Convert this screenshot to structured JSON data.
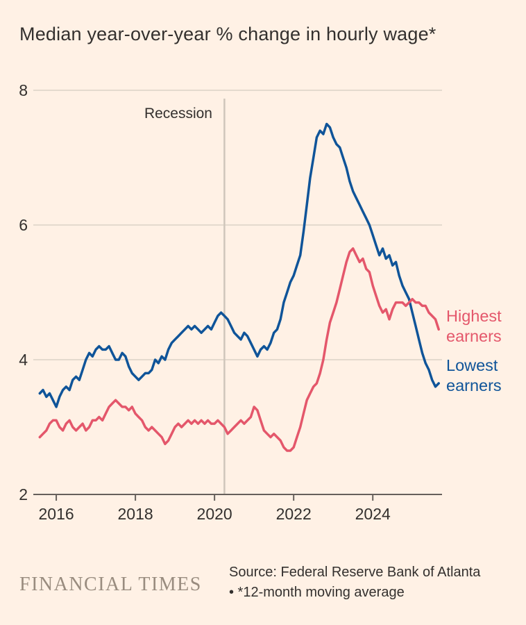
{
  "title": "Median year-over-year % change in hourly wage*",
  "recession_label": "Recession",
  "legend": {
    "highest": "Highest earners",
    "lowest": "Lowest earners"
  },
  "footer": {
    "brand": "FINANCIAL TIMES",
    "source_line1": "Source: Federal Reserve Bank of Atlanta",
    "source_line2": "• *12-month moving average"
  },
  "colors": {
    "background": "#FFF1E5",
    "text": "#33302E",
    "grid": "#DCD2C7",
    "axis": "#66605B",
    "recession_line": "#CFC6BB",
    "highest": "#E4576B",
    "lowest": "#0F5499",
    "brand_text": "#998C7F"
  },
  "chart_data": {
    "type": "line",
    "title": "Median year-over-year % change in hourly wage*",
    "xlabel": "",
    "ylabel": "",
    "x_axis": {
      "range": [
        2015.42,
        2025.75
      ],
      "ticks": [
        2016,
        2018,
        2020,
        2022,
        2024
      ]
    },
    "y_axis": {
      "range": [
        2,
        8
      ],
      "ticks": [
        2,
        4,
        6,
        8
      ]
    },
    "grid": true,
    "recession_x": 2020.25,
    "annotations": [
      "Recession"
    ],
    "series": [
      {
        "name": "Lowest earners",
        "color_key": "lowest",
        "x_start": 2015.583,
        "x_step": 0.083333,
        "values": [
          3.5,
          3.55,
          3.45,
          3.5,
          3.4,
          3.3,
          3.45,
          3.55,
          3.6,
          3.55,
          3.7,
          3.75,
          3.7,
          3.85,
          4.0,
          4.1,
          4.05,
          4.15,
          4.2,
          4.15,
          4.15,
          4.2,
          4.1,
          4.0,
          4.0,
          4.1,
          4.05,
          3.9,
          3.8,
          3.75,
          3.7,
          3.75,
          3.8,
          3.8,
          3.85,
          4.0,
          3.95,
          4.05,
          4.0,
          4.15,
          4.25,
          4.3,
          4.35,
          4.4,
          4.45,
          4.5,
          4.45,
          4.5,
          4.45,
          4.4,
          4.45,
          4.5,
          4.45,
          4.55,
          4.65,
          4.7,
          4.65,
          4.6,
          4.5,
          4.4,
          4.35,
          4.3,
          4.4,
          4.35,
          4.25,
          4.15,
          4.05,
          4.15,
          4.2,
          4.15,
          4.25,
          4.4,
          4.45,
          4.6,
          4.85,
          5.0,
          5.15,
          5.25,
          5.4,
          5.55,
          5.9,
          6.3,
          6.7,
          7.0,
          7.3,
          7.4,
          7.35,
          7.5,
          7.45,
          7.3,
          7.2,
          7.15,
          7.0,
          6.85,
          6.65,
          6.5,
          6.4,
          6.3,
          6.2,
          6.1,
          6.0,
          5.85,
          5.7,
          5.55,
          5.65,
          5.5,
          5.55,
          5.4,
          5.45,
          5.25,
          5.1,
          5.0,
          4.9,
          4.7,
          4.5,
          4.3,
          4.1,
          3.95,
          3.85,
          3.7,
          3.6,
          3.65
        ]
      },
      {
        "name": "Highest earners",
        "color_key": "highest",
        "x_start": 2015.583,
        "x_step": 0.083333,
        "values": [
          2.85,
          2.9,
          2.95,
          3.05,
          3.1,
          3.1,
          3.0,
          2.95,
          3.05,
          3.1,
          3.0,
          2.95,
          3.0,
          3.05,
          2.95,
          3.0,
          3.1,
          3.1,
          3.15,
          3.1,
          3.2,
          3.3,
          3.35,
          3.4,
          3.35,
          3.3,
          3.3,
          3.25,
          3.3,
          3.2,
          3.15,
          3.1,
          3.0,
          2.95,
          3.0,
          2.95,
          2.9,
          2.85,
          2.75,
          2.8,
          2.9,
          3.0,
          3.05,
          3.0,
          3.05,
          3.1,
          3.05,
          3.1,
          3.05,
          3.1,
          3.05,
          3.1,
          3.05,
          3.05,
          3.1,
          3.05,
          3.0,
          2.9,
          2.95,
          3.0,
          3.05,
          3.1,
          3.05,
          3.1,
          3.15,
          3.3,
          3.25,
          3.1,
          2.95,
          2.9,
          2.85,
          2.9,
          2.85,
          2.8,
          2.7,
          2.65,
          2.65,
          2.7,
          2.85,
          3.0,
          3.2,
          3.4,
          3.5,
          3.6,
          3.65,
          3.8,
          4.0,
          4.3,
          4.55,
          4.7,
          4.85,
          5.05,
          5.25,
          5.45,
          5.6,
          5.65,
          5.55,
          5.45,
          5.5,
          5.35,
          5.3,
          5.1,
          4.95,
          4.8,
          4.7,
          4.75,
          4.6,
          4.75,
          4.85,
          4.85,
          4.85,
          4.8,
          4.85,
          4.9,
          4.85,
          4.85,
          4.8,
          4.8,
          4.7,
          4.65,
          4.6,
          4.45
        ]
      }
    ]
  }
}
